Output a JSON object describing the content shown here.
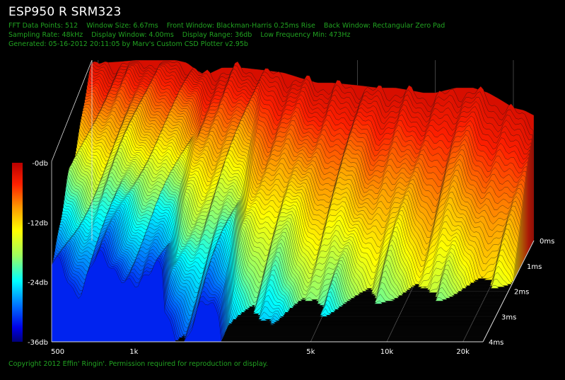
{
  "header": {
    "title": "ESP950 R SRM323",
    "fft_points": "FFT Data Points: 512",
    "window_size": "Window Size: 6.67ms",
    "front_window": "Front Window: Blackman-Harris 0.25ms Rise",
    "back_window": "Back Window: Rectangular Zero Pad",
    "sampling_rate": "Sampling Rate: 48kHz",
    "display_window": "Display Window: 4.00ms",
    "display_range": "Display Range: 36db",
    "low_freq": "Low Frequency Min: 473Hz",
    "generated": "Generated: 05-16-2012 20:11:05 by Marv's Custom CSD Plotter v2.95b"
  },
  "footer": {
    "copyright": "Copyright 2012 Effin' Ringin'. Permission required for reproduction or display."
  },
  "colors": {
    "meta_text": "#21a321",
    "background": "#000000",
    "grid": "#6a6a6a"
  },
  "chart_data": {
    "type": "waterfall",
    "x_ticks": [
      "500",
      "1k",
      "5k",
      "10k",
      "20k"
    ],
    "x_tick_values": [
      500,
      1000,
      5000,
      10000,
      20000
    ],
    "x_scale": "log",
    "x_range": [
      473,
      24000
    ],
    "z_ticks": [
      "0ms",
      "1ms",
      "2ms",
      "3ms",
      "4ms"
    ],
    "z_tick_values": [
      0,
      1,
      2,
      3,
      4
    ],
    "colorbar_labels": [
      "-0db",
      "-12db",
      "-24db",
      "-36db"
    ],
    "colorbar_values": [
      0,
      -12,
      -24,
      -36
    ],
    "y_range": [
      -36,
      0
    ],
    "initial_response": {
      "freq": [
        473,
        520,
        600,
        700,
        800,
        900,
        1000,
        1100,
        1200,
        1300,
        1500,
        1800,
        2200,
        2600,
        3000,
        3500,
        4000,
        5000,
        6000,
        7000,
        8000,
        9000,
        10000,
        12000,
        14000,
        16000,
        18000,
        20000,
        22000,
        24000
      ],
      "db": [
        -1,
        -0.5,
        -0.3,
        0,
        0,
        0,
        0,
        -0.5,
        -2,
        -3,
        -1.5,
        -1.5,
        -2,
        -2.5,
        -3.5,
        -4.5,
        -4.5,
        -5,
        -5.5,
        -5.5,
        -6,
        -6.5,
        -6.5,
        -5.5,
        -5.5,
        -6.5,
        -8,
        -9.5,
        -10,
        -11
      ]
    },
    "time_slices_ms": 4.0
  }
}
